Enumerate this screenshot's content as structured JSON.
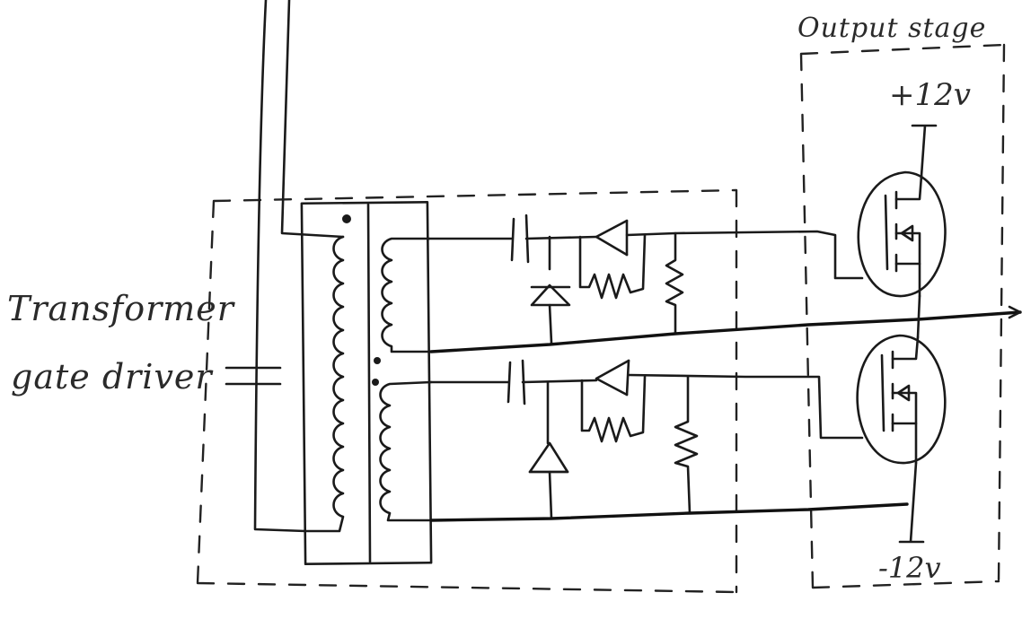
{
  "labels": {
    "driver_line1": "Transformer",
    "driver_line2": "gate driver",
    "output_stage": "Output stage",
    "positive_rail": "+12v",
    "negative_rail": "-12v"
  },
  "colors": {
    "ink": "#1a1a1a",
    "paper": "#ffffff"
  }
}
